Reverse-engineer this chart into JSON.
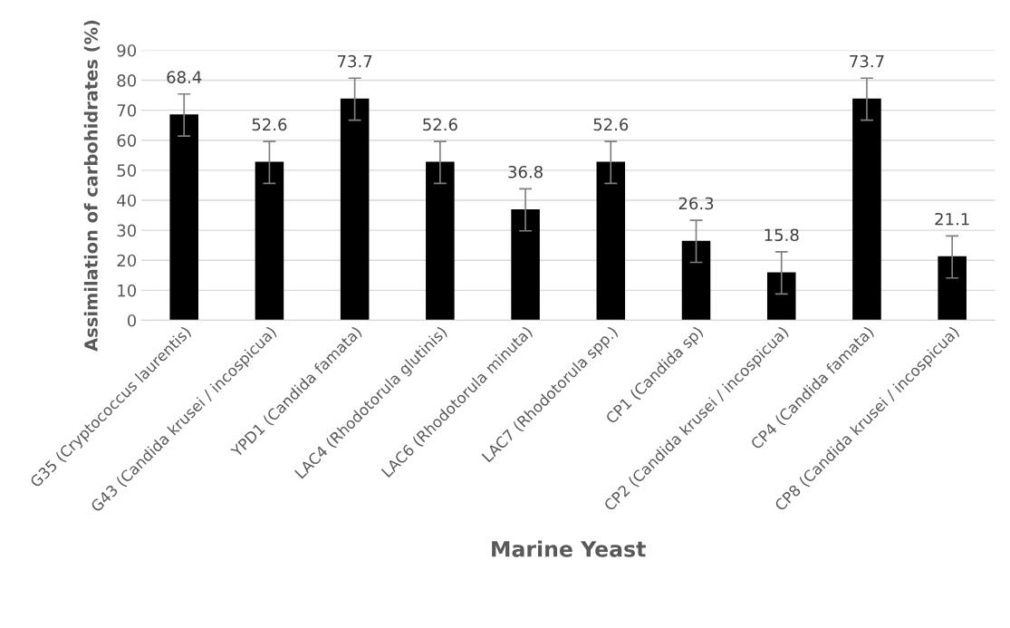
{
  "chart_data": {
    "type": "bar",
    "xlabel": "Marine Yeast",
    "ylabel": "Assimilation of carbohidrates (%)",
    "categories": [
      "G35 (Cryptococcus laurentis)",
      "G43 (Candida krusei / incospicua)",
      "YPD1 (Candida famata)",
      "LAC4 (Rhodotorula glutinis)",
      "LAC6 (Rhodotorula minuta)",
      "LAC7 (Rhodotorula spp.)",
      "CP1 (Candida sp)",
      "CP2 (Candida krusei / incospicua)",
      "CP4 (Candida famata)",
      "CP8 (Candida krusei / incospicua)"
    ],
    "values": [
      68.4,
      52.6,
      73.7,
      52.6,
      36.8,
      52.6,
      26.3,
      15.8,
      73.7,
      21.1
    ],
    "errors": [
      7,
      7,
      7,
      7,
      7,
      7,
      7,
      7,
      7,
      7
    ],
    "color": "#000000",
    "data_labels": true,
    "ylim": [
      0,
      90
    ],
    "yticks": [
      0,
      10,
      20,
      30,
      40,
      50,
      60,
      70,
      80,
      90
    ],
    "grid": "y",
    "legend": false
  }
}
